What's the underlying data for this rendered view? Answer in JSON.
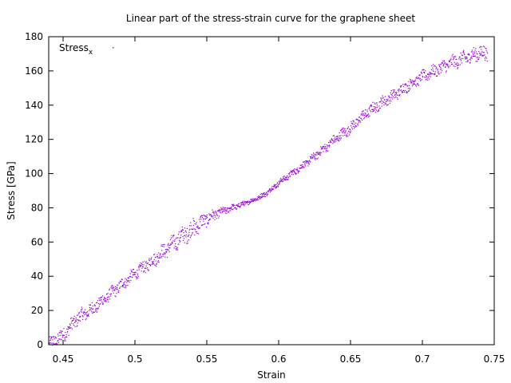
{
  "chart_data": {
    "type": "scatter",
    "title": "Linear part of the stress-strain curve for the graphene sheet",
    "xlabel": "Strain",
    "ylabel": "Stress [GPa]",
    "xlim": [
      0.44,
      0.75
    ],
    "ylim": [
      0,
      180
    ],
    "xticks": [
      0.45,
      0.5,
      0.55,
      0.6,
      0.65,
      0.7,
      0.75
    ],
    "xtick_labels": [
      "0.45",
      "0.5",
      "0.55",
      "0.6",
      "0.65",
      "0.7",
      "0.75"
    ],
    "yticks": [
      0,
      20,
      40,
      60,
      80,
      100,
      120,
      140,
      160,
      180
    ],
    "ytick_labels": [
      "0",
      "20",
      "40",
      "60",
      "80",
      "100",
      "120",
      "140",
      "160",
      "180"
    ],
    "grid": false,
    "legend_position": "top-left",
    "series": [
      {
        "name": "Stress",
        "name_subscript": "x",
        "color": "#9400d3",
        "marker": "dot",
        "x_range": [
          0.44,
          0.745
        ],
        "x_step": 0.0002,
        "key_points": [
          [
            0.44,
            0
          ],
          [
            0.45,
            6
          ],
          [
            0.46,
            16
          ],
          [
            0.47,
            21
          ],
          [
            0.48,
            28
          ],
          [
            0.49,
            35
          ],
          [
            0.5,
            42
          ],
          [
            0.51,
            48
          ],
          [
            0.52,
            55
          ],
          [
            0.53,
            62
          ],
          [
            0.54,
            68
          ],
          [
            0.55,
            74
          ],
          [
            0.56,
            78
          ],
          [
            0.57,
            81
          ],
          [
            0.58,
            84
          ],
          [
            0.59,
            88
          ],
          [
            0.6,
            95
          ],
          [
            0.61,
            101
          ],
          [
            0.62,
            107
          ],
          [
            0.63,
            114
          ],
          [
            0.64,
            121
          ],
          [
            0.65,
            127
          ],
          [
            0.66,
            135
          ],
          [
            0.67,
            141
          ],
          [
            0.68,
            146
          ],
          [
            0.69,
            152
          ],
          [
            0.7,
            157
          ],
          [
            0.71,
            161
          ],
          [
            0.72,
            165
          ],
          [
            0.73,
            168
          ],
          [
            0.74,
            171
          ],
          [
            0.745,
            170
          ]
        ],
        "scatter_spread": [
          [
            0.44,
            4
          ],
          [
            0.5,
            3
          ],
          [
            0.54,
            5
          ],
          [
            0.56,
            2
          ],
          [
            0.58,
            1.2
          ],
          [
            0.6,
            1.5
          ],
          [
            0.62,
            2
          ],
          [
            0.65,
            3
          ],
          [
            0.7,
            3
          ],
          [
            0.745,
            4
          ]
        ]
      }
    ]
  }
}
